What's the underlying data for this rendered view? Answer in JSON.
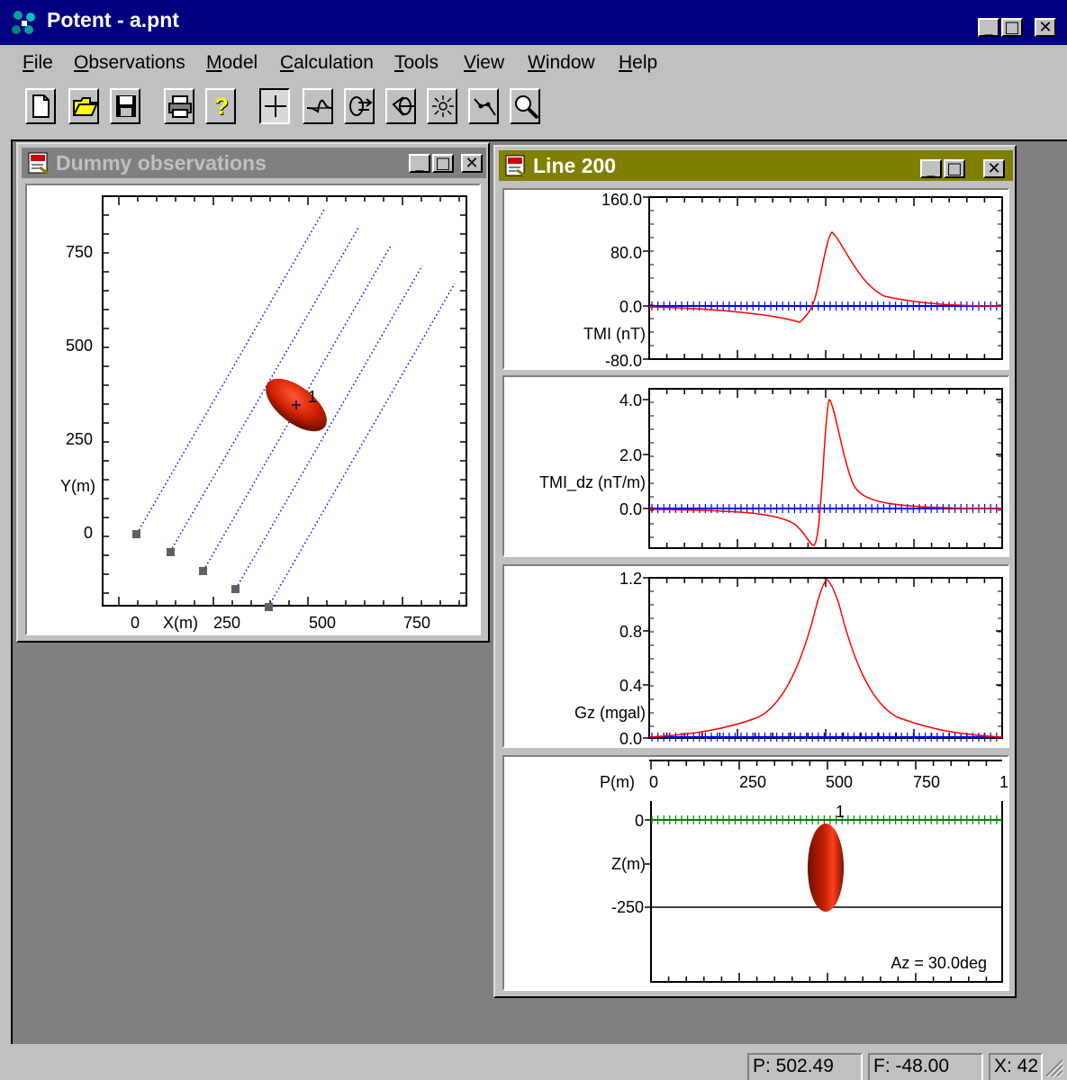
{
  "app": {
    "title": "Potent - a.pnt",
    "window_controls": {
      "minimize": "_",
      "maximize": "□",
      "close": "✕"
    }
  },
  "menu": [
    {
      "hot": "F",
      "rest": "ile"
    },
    {
      "hot": "O",
      "rest": "bservations"
    },
    {
      "hot": "M",
      "rest": "odel"
    },
    {
      "hot": "C",
      "rest": "alculation"
    },
    {
      "hot": "T",
      "rest": "ools"
    },
    {
      "hot": "V",
      "rest": "iew"
    },
    {
      "hot": "W",
      "rest": "indow"
    },
    {
      "hot": "H",
      "rest": "elp"
    }
  ],
  "toolbar_icons": [
    "new-icon",
    "open-icon",
    "save-icon",
    "print-icon",
    "help-icon",
    "crosshair-icon",
    "profile-icon",
    "export-icon",
    "rotate-icon",
    "sun-icon",
    "path-icon",
    "zoom-icon"
  ],
  "plan_window": {
    "title": "Dummy observations",
    "xticks": [
      "0",
      "X(m)",
      "250",
      "500",
      "750"
    ],
    "yticks": [
      "750",
      "500",
      "250",
      "Y(m)",
      "0"
    ],
    "body_label": "1"
  },
  "line_window": {
    "title": "Line 200",
    "tmi": {
      "ticks": [
        "160.0",
        "80.0",
        "0.0",
        "TMI (nT)",
        "-80.0"
      ]
    },
    "tmi_dz": {
      "ticks": [
        "4.0",
        "2.0",
        "TMI_dz (nT/m)",
        "0.0"
      ]
    },
    "gz": {
      "ticks": [
        "1.2",
        "0.8",
        "0.4",
        "Gz (mgal)",
        "0.0"
      ]
    },
    "section": {
      "xticks": [
        "P(m)",
        "0",
        "250",
        "500",
        "750",
        "1"
      ],
      "yticks": [
        "0",
        "Z(m)",
        "-250"
      ],
      "body_label": "1",
      "azimuth": "Az = 30.0deg"
    }
  },
  "status": {
    "p": "P: 502.49",
    "f": "F: -48.00",
    "x": "X: 42"
  },
  "colors": {
    "titlebar": "#000080",
    "inactive_title": "#808080",
    "line_title": "#808000",
    "profile": "#ff0000",
    "stations": "#0000ff",
    "surface": "#008000",
    "body": "#b22000"
  }
}
